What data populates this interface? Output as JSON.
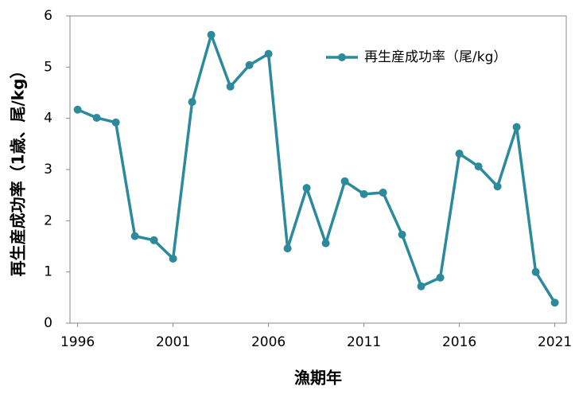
{
  "chart_data": {
    "type": "line",
    "x_label": "漁期年",
    "y_label": "再生産成功率（1歳、尾/kg）",
    "x": [
      1996,
      1997,
      1998,
      1999,
      2000,
      2001,
      2002,
      2003,
      2004,
      2005,
      2006,
      2007,
      2008,
      2009,
      2010,
      2011,
      2012,
      2013,
      2014,
      2015,
      2016,
      2017,
      2018,
      2019,
      2020,
      2021
    ],
    "series": [
      {
        "name": "再生産成功率（尾/kg）",
        "color": "#2b8a9b",
        "values": [
          4.17,
          4.01,
          3.92,
          1.7,
          1.62,
          1.26,
          4.32,
          5.63,
          4.62,
          5.04,
          5.26,
          1.46,
          2.64,
          1.56,
          2.77,
          2.52,
          2.55,
          1.73,
          0.72,
          0.89,
          3.31,
          3.06,
          2.67,
          3.83,
          1.0,
          0.4
        ]
      }
    ],
    "xlim": [
      1995.6,
      2021.6
    ],
    "xticks": [
      1996,
      2001,
      2006,
      2011,
      2016,
      2021
    ],
    "ylim": [
      0,
      6
    ],
    "yticks": [
      0,
      1,
      2,
      3,
      4,
      5,
      6
    ],
    "legend": "upper right"
  }
}
